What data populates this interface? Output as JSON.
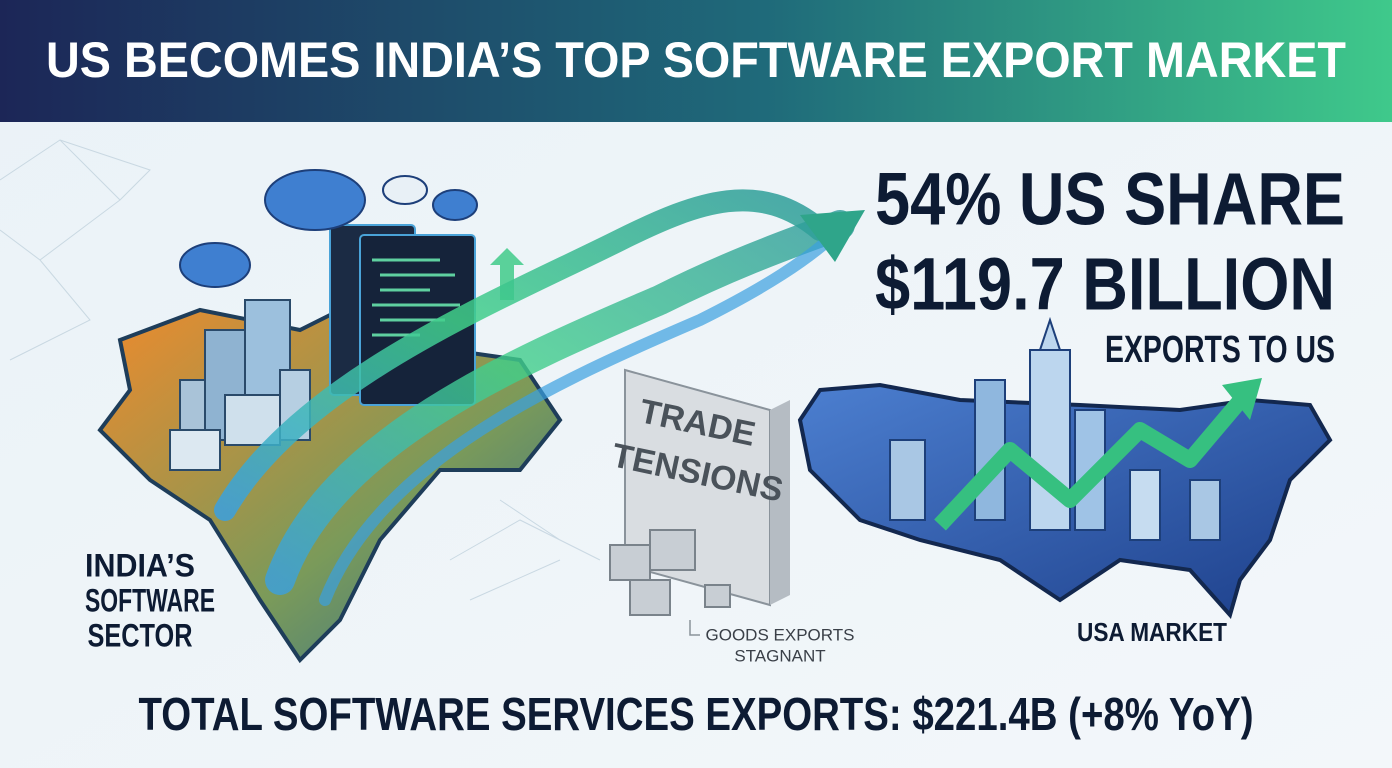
{
  "header": {
    "title": "US BECOMES INDIA’S TOP SOFTWARE EXPORT MARKET"
  },
  "headline": {
    "share": "54% US SHARE",
    "amount": "$119.7 BILLION",
    "caption": "EXPORTS TO US"
  },
  "india_label": [
    "INDIA’S",
    "SOFTWARE",
    "SECTOR"
  ],
  "wall_label": [
    "TRADE",
    "TENSIONS"
  ],
  "goods_label": [
    "GOODS EXPORTS",
    "STAGNANT"
  ],
  "usa_label": "USA MARKET",
  "footer": "TOTAL SOFTWARE SERVICES EXPORTS: $221.4B (+8% YoY)"
}
